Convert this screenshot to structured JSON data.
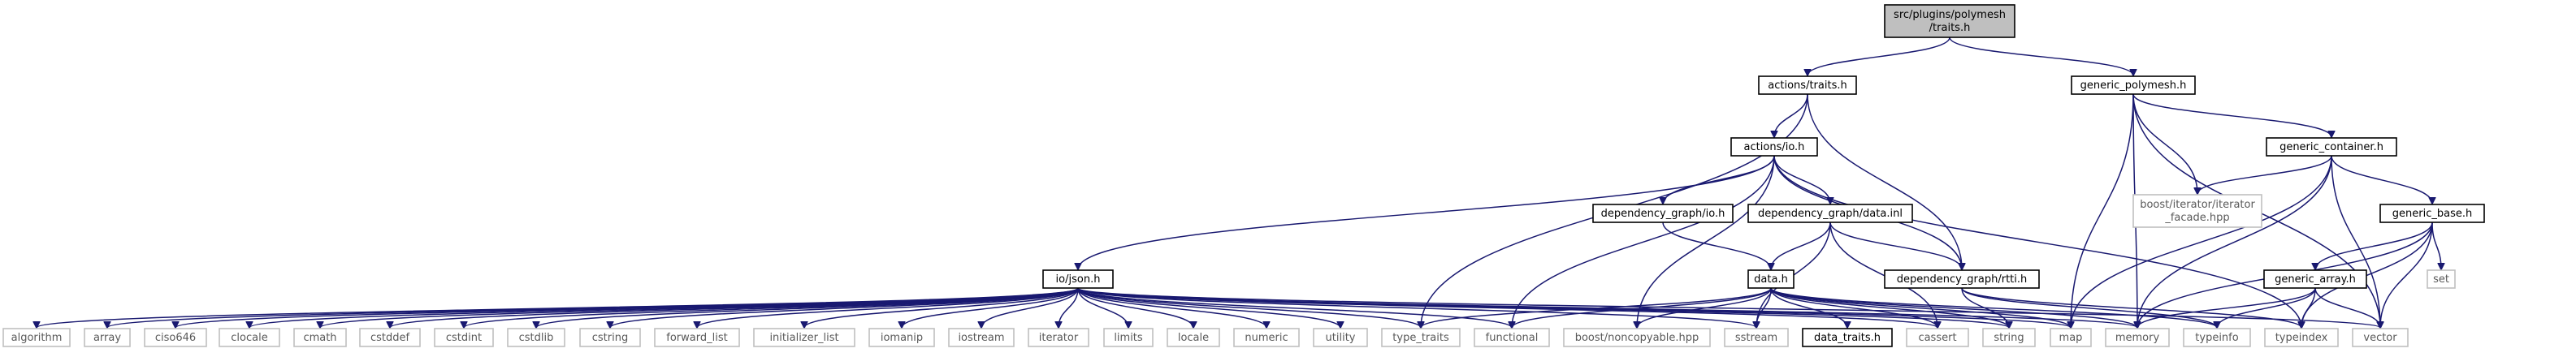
{
  "graph": {
    "colors": {
      "edge": "#191970",
      "root_fill": "#bfbfbf",
      "node_fill": "#ffffff",
      "node_border": "#000000",
      "external_border": "#bfbfbf"
    },
    "nodes": [
      {
        "id": "root",
        "lines": [
          "src/plugins/polymesh",
          "/traits.h"
        ],
        "kind": "root"
      },
      {
        "id": "actions_traits",
        "lines": [
          "actions/traits.h"
        ],
        "kind": "file"
      },
      {
        "id": "generic_polymesh",
        "lines": [
          "generic_polymesh.h"
        ],
        "kind": "file"
      },
      {
        "id": "actions_io",
        "lines": [
          "actions/io.h"
        ],
        "kind": "file"
      },
      {
        "id": "generic_container",
        "lines": [
          "generic_container.h"
        ],
        "kind": "file"
      },
      {
        "id": "boost_facade",
        "lines": [
          "boost/iterator/iterator",
          "_facade.hpp"
        ],
        "kind": "external"
      },
      {
        "id": "dg_io",
        "lines": [
          "dependency_graph/io.h"
        ],
        "kind": "file"
      },
      {
        "id": "dg_data_inl",
        "lines": [
          "dependency_graph/data.inl"
        ],
        "kind": "file"
      },
      {
        "id": "generic_base",
        "lines": [
          "generic_base.h"
        ],
        "kind": "file"
      },
      {
        "id": "io_json",
        "lines": [
          "io/json.h"
        ],
        "kind": "file"
      },
      {
        "id": "data_h",
        "lines": [
          "data.h"
        ],
        "kind": "file"
      },
      {
        "id": "dg_rtti",
        "lines": [
          "dependency_graph/rtti.h"
        ],
        "kind": "file"
      },
      {
        "id": "generic_array",
        "lines": [
          "generic_array.h"
        ],
        "kind": "file"
      },
      {
        "id": "set",
        "lines": [
          "set"
        ],
        "kind": "external"
      },
      {
        "id": "algorithm",
        "lines": [
          "algorithm"
        ],
        "kind": "external"
      },
      {
        "id": "array",
        "lines": [
          "array"
        ],
        "kind": "external"
      },
      {
        "id": "ciso646",
        "lines": [
          "ciso646"
        ],
        "kind": "external"
      },
      {
        "id": "clocale",
        "lines": [
          "clocale"
        ],
        "kind": "external"
      },
      {
        "id": "cmath",
        "lines": [
          "cmath"
        ],
        "kind": "external"
      },
      {
        "id": "cstddef",
        "lines": [
          "cstddef"
        ],
        "kind": "external"
      },
      {
        "id": "cstdint",
        "lines": [
          "cstdint"
        ],
        "kind": "external"
      },
      {
        "id": "cstdlib",
        "lines": [
          "cstdlib"
        ],
        "kind": "external"
      },
      {
        "id": "cstring",
        "lines": [
          "cstring"
        ],
        "kind": "external"
      },
      {
        "id": "forward_list",
        "lines": [
          "forward_list"
        ],
        "kind": "external"
      },
      {
        "id": "initializer_list",
        "lines": [
          "initializer_list"
        ],
        "kind": "external"
      },
      {
        "id": "iomanip",
        "lines": [
          "iomanip"
        ],
        "kind": "external"
      },
      {
        "id": "iostream",
        "lines": [
          "iostream"
        ],
        "kind": "external"
      },
      {
        "id": "iterator",
        "lines": [
          "iterator"
        ],
        "kind": "external"
      },
      {
        "id": "limits",
        "lines": [
          "limits"
        ],
        "kind": "external"
      },
      {
        "id": "locale",
        "lines": [
          "locale"
        ],
        "kind": "external"
      },
      {
        "id": "numeric",
        "lines": [
          "numeric"
        ],
        "kind": "external"
      },
      {
        "id": "utility",
        "lines": [
          "utility"
        ],
        "kind": "external"
      },
      {
        "id": "type_traits",
        "lines": [
          "type_traits"
        ],
        "kind": "external"
      },
      {
        "id": "functional",
        "lines": [
          "functional"
        ],
        "kind": "external"
      },
      {
        "id": "boost_noncopyable",
        "lines": [
          "boost/noncopyable.hpp"
        ],
        "kind": "external"
      },
      {
        "id": "sstream",
        "lines": [
          "sstream"
        ],
        "kind": "external"
      },
      {
        "id": "data_traits",
        "lines": [
          "data_traits.h"
        ],
        "kind": "file"
      },
      {
        "id": "cassert",
        "lines": [
          "cassert"
        ],
        "kind": "external"
      },
      {
        "id": "string",
        "lines": [
          "string"
        ],
        "kind": "external"
      },
      {
        "id": "map",
        "lines": [
          "map"
        ],
        "kind": "external"
      },
      {
        "id": "memory",
        "lines": [
          "memory"
        ],
        "kind": "external"
      },
      {
        "id": "typeinfo",
        "lines": [
          "typeinfo"
        ],
        "kind": "external"
      },
      {
        "id": "typeindex",
        "lines": [
          "typeindex"
        ],
        "kind": "external"
      },
      {
        "id": "vector",
        "lines": [
          "vector"
        ],
        "kind": "external"
      }
    ],
    "edges": [
      [
        "root",
        "actions_traits"
      ],
      [
        "root",
        "generic_polymesh"
      ],
      [
        "actions_traits",
        "actions_io"
      ],
      [
        "actions_traits",
        "dg_rtti"
      ],
      [
        "actions_traits",
        "type_traits"
      ],
      [
        "generic_polymesh",
        "generic_container"
      ],
      [
        "generic_polymesh",
        "boost_facade"
      ],
      [
        "generic_polymesh",
        "map"
      ],
      [
        "generic_polymesh",
        "memory"
      ],
      [
        "generic_polymesh",
        "vector"
      ],
      [
        "actions_io",
        "dg_io"
      ],
      [
        "actions_io",
        "dg_data_inl"
      ],
      [
        "actions_io",
        "io_json"
      ],
      [
        "actions_io",
        "dg_rtti"
      ],
      [
        "actions_io",
        "functional"
      ],
      [
        "actions_io",
        "boost_noncopyable"
      ],
      [
        "actions_io",
        "typeindex"
      ],
      [
        "generic_container",
        "generic_base"
      ],
      [
        "generic_container",
        "boost_facade"
      ],
      [
        "generic_container",
        "memory"
      ],
      [
        "generic_container",
        "map"
      ],
      [
        "generic_container",
        "vector"
      ],
      [
        "dg_io",
        "data_h"
      ],
      [
        "dg_data_inl",
        "data_h"
      ],
      [
        "dg_data_inl",
        "dg_rtti"
      ],
      [
        "dg_data_inl",
        "cassert"
      ],
      [
        "dg_data_inl",
        "sstream"
      ],
      [
        "generic_base",
        "generic_array"
      ],
      [
        "generic_base",
        "set"
      ],
      [
        "generic_base",
        "vector"
      ],
      [
        "generic_base",
        "typeindex"
      ],
      [
        "generic_base",
        "memory"
      ],
      [
        "data_h",
        "type_traits"
      ],
      [
        "data_h",
        "functional"
      ],
      [
        "data_h",
        "boost_noncopyable"
      ],
      [
        "data_h",
        "sstream"
      ],
      [
        "data_h",
        "data_traits"
      ],
      [
        "data_h",
        "cassert"
      ],
      [
        "data_h",
        "string"
      ],
      [
        "data_h",
        "map"
      ],
      [
        "data_h",
        "memory"
      ],
      [
        "data_h",
        "typeinfo"
      ],
      [
        "dg_rtti",
        "string"
      ],
      [
        "dg_rtti",
        "typeindex"
      ],
      [
        "dg_rtti",
        "typeinfo"
      ],
      [
        "generic_array",
        "typeinfo"
      ],
      [
        "generic_array",
        "typeindex"
      ],
      [
        "generic_array",
        "memory"
      ],
      [
        "generic_array",
        "vector"
      ],
      [
        "io_json",
        "algorithm"
      ],
      [
        "io_json",
        "array"
      ],
      [
        "io_json",
        "ciso646"
      ],
      [
        "io_json",
        "clocale"
      ],
      [
        "io_json",
        "cmath"
      ],
      [
        "io_json",
        "cstddef"
      ],
      [
        "io_json",
        "cstdint"
      ],
      [
        "io_json",
        "cstdlib"
      ],
      [
        "io_json",
        "cstring"
      ],
      [
        "io_json",
        "forward_list"
      ],
      [
        "io_json",
        "initializer_list"
      ],
      [
        "io_json",
        "iomanip"
      ],
      [
        "io_json",
        "iostream"
      ],
      [
        "io_json",
        "iterator"
      ],
      [
        "io_json",
        "limits"
      ],
      [
        "io_json",
        "locale"
      ],
      [
        "io_json",
        "numeric"
      ],
      [
        "io_json",
        "utility"
      ],
      [
        "io_json",
        "type_traits"
      ],
      [
        "io_json",
        "functional"
      ],
      [
        "io_json",
        "sstream"
      ],
      [
        "io_json",
        "cassert"
      ],
      [
        "io_json",
        "string"
      ],
      [
        "io_json",
        "map"
      ],
      [
        "io_json",
        "memory"
      ],
      [
        "io_json",
        "vector"
      ]
    ]
  }
}
